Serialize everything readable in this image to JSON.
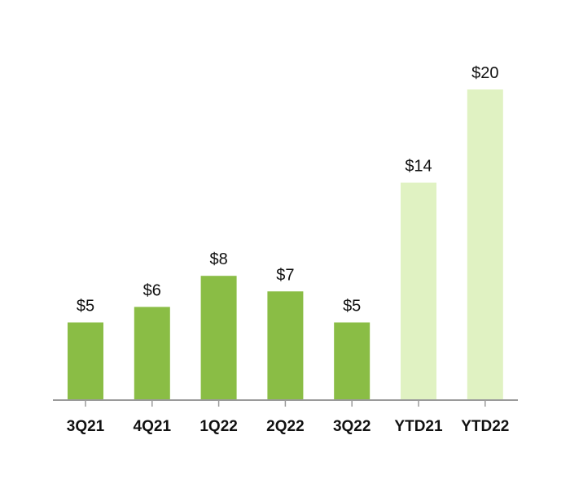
{
  "chart_data": {
    "type": "bar",
    "categories": [
      "3Q21",
      "4Q21",
      "1Q22",
      "2Q22",
      "3Q22",
      "YTD21",
      "YTD22"
    ],
    "values": [
      5,
      6,
      8,
      7,
      5,
      14,
      20
    ],
    "value_labels": [
      "$5",
      "$6",
      "$8",
      "$7",
      "$5",
      "$14",
      "$20"
    ],
    "bar_groups": [
      "quarter",
      "quarter",
      "quarter",
      "quarter",
      "quarter",
      "ytd",
      "ytd"
    ],
    "title": "",
    "xlabel": "",
    "ylabel": "",
    "ylim": [
      0,
      20
    ],
    "grid": false,
    "legend": "none"
  },
  "colors": {
    "quarter_bar": "#8abd45",
    "ytd_bar": "#e0f2c2",
    "axis": "#9a9a9a",
    "text": "#111111"
  }
}
